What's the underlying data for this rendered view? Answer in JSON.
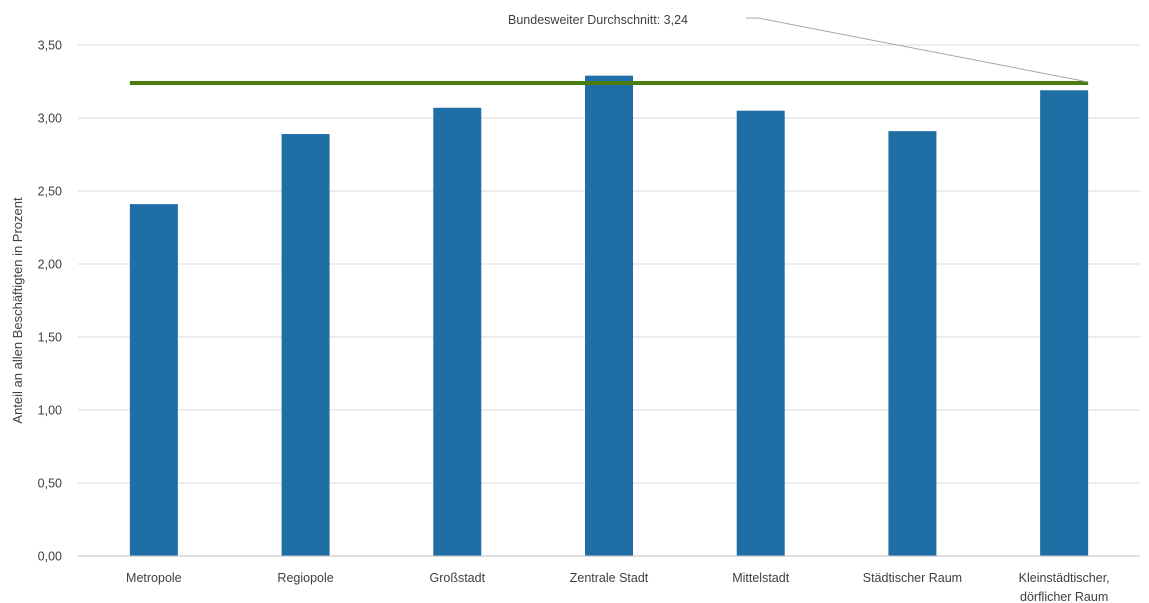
{
  "chart_data": {
    "type": "bar",
    "categories": [
      [
        "Metropole"
      ],
      [
        "Regiopole"
      ],
      [
        "Großstadt"
      ],
      [
        "Zentrale Stadt"
      ],
      [
        "Mittelstadt"
      ],
      [
        "Städtischer Raum"
      ],
      [
        "Kleinstädtischer,",
        "dörflicher Raum"
      ]
    ],
    "values": [
      2.41,
      2.89,
      3.07,
      3.29,
      3.05,
      2.91,
      3.19
    ],
    "title": "",
    "xlabel": "",
    "ylabel": "Anteil an allen Beschäftigten in Prozent",
    "ylim": [
      0,
      3.5
    ],
    "yticks": [
      "0,00",
      "0,50",
      "1,00",
      "1,50",
      "2,00",
      "2,50",
      "3,00",
      "3,50"
    ],
    "ytick_values": [
      0,
      0.5,
      1,
      1.5,
      2,
      2.5,
      3,
      3.5
    ],
    "grid": true,
    "bar_color": "#1f6ea6",
    "reference_line": {
      "value": 3.24,
      "label": "Bundesweiter  Durchschnitt:  3,24",
      "color": "#4a7c0f"
    }
  }
}
